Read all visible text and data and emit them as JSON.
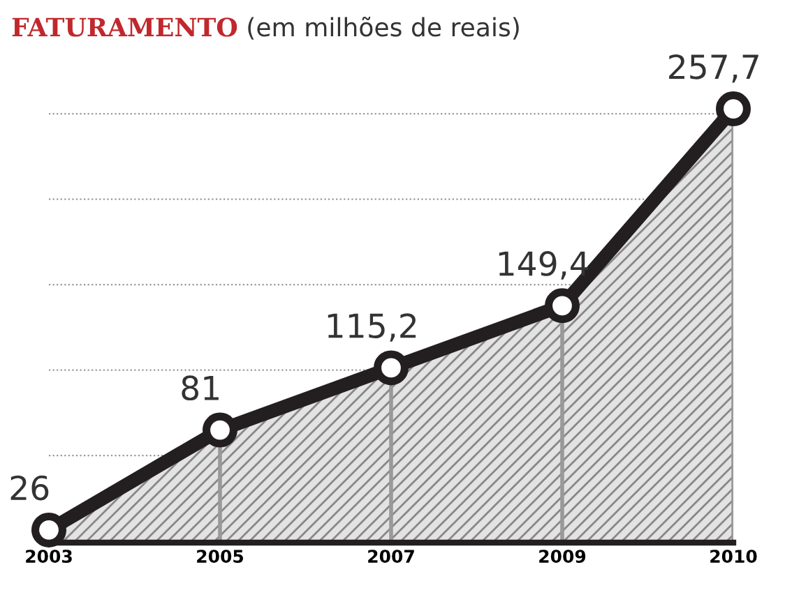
{
  "chart_data": {
    "type": "area",
    "title": "FATURAMENTO",
    "subtitle": "(em milhões de reais)",
    "categories": [
      "2003",
      "2005",
      "2007",
      "2009",
      "2010"
    ],
    "series": [
      {
        "color": "#231f20",
        "values": [
          26,
          81,
          115.2,
          149.4,
          257.7
        ],
        "value_labels": [
          "26",
          "81",
          "115,2",
          "149,4",
          "257,7"
        ]
      }
    ],
    "yticks": [
      {
        "value": 67,
        "label": null
      },
      {
        "value": 114,
        "label": null
      },
      {
        "value": 161,
        "label": null
      },
      {
        "value": 208,
        "label": null
      },
      {
        "value": 255,
        "label": null
      }
    ],
    "tick_labels": "x",
    "grid": "y",
    "marker": "circle",
    "line_style": "solid"
  }
}
